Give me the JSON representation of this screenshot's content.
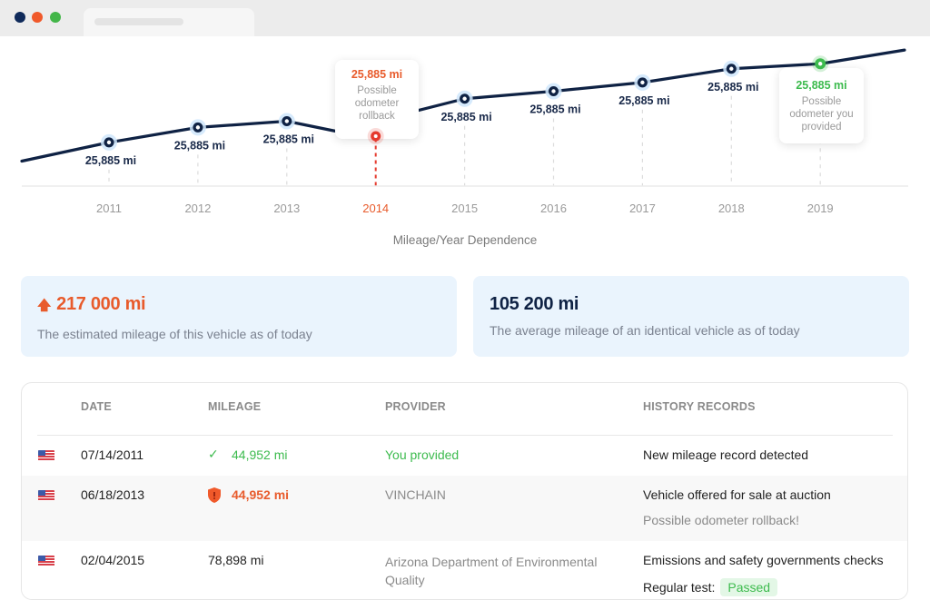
{
  "window": {
    "controls": [
      {
        "name": "close",
        "color": "#0f2a5a"
      },
      {
        "name": "minimize",
        "color": "#f0592a"
      },
      {
        "name": "maximize",
        "color": "#43b649"
      }
    ]
  },
  "colors": {
    "line": "#0f2244",
    "alert": "#e85b2c",
    "rollback_point": "#e53a2e",
    "provided": "#3dbb4e",
    "card_bg": "#eaf4fd"
  },
  "chart_data": {
    "type": "line",
    "title": "",
    "xlabel": "Mileage/Year Dependence",
    "ylabel": "",
    "categories": [
      "2011",
      "2012",
      "2013",
      "2014",
      "2015",
      "2016",
      "2017",
      "2018",
      "2019"
    ],
    "series": [
      {
        "name": "Mileage",
        "values_relative": [
          35,
          47,
          52,
          44,
          70,
          76,
          83,
          94,
          98
        ],
        "labels": [
          "25,885 mi",
          "25,885 mi",
          "25,885 mi",
          "25,885 mi",
          "25,885 mi",
          "25,885 mi",
          "25,885 mi",
          "25,885 mi",
          "25,885 mi"
        ],
        "start_relative": 20,
        "end_relative": 109
      }
    ],
    "ylim": [
      0,
      120
    ],
    "grid": "vertical-dashed",
    "highlighted_category": "2014",
    "annotations": [
      {
        "category": "2014",
        "value": "25,885 mi",
        "text": [
          "Possible",
          "odometer",
          "rollback"
        ],
        "kind": "rollback"
      },
      {
        "category": "2019",
        "value": "25,885 mi",
        "text": [
          "Possible",
          "odometer you",
          "provided"
        ],
        "kind": "provided"
      }
    ]
  },
  "stats": [
    {
      "value": "217 000 mi",
      "description": "The estimated mileage of this vehicle as of today",
      "icon": "arrow-up-icon",
      "alert": true
    },
    {
      "value": "105 200 mi",
      "description": "The average mileage of an identical vehicle as of today",
      "alert": false
    }
  ],
  "table": {
    "headers": [
      "DATE",
      "MILEAGE",
      "PROVIDER",
      "HISTORY RECORDS"
    ],
    "rows": [
      {
        "country": "us-flag",
        "date": "07/14/2011",
        "mileage": "44,952 mi",
        "mileage_status": "verified",
        "provider": "You provided",
        "record": "New mileage record detected",
        "note": ""
      },
      {
        "country": "us-flag",
        "date": "06/18/2013",
        "mileage": "44,952 mi",
        "mileage_status": "alert",
        "provider": "VINCHAIN",
        "record": "Vehicle offered for sale at auction",
        "note": "Possible odometer rollback!"
      },
      {
        "country": "us-flag",
        "date": "02/04/2015",
        "mileage": "78,898 mi",
        "mileage_status": "normal",
        "provider": "Arizona Department of Environmental Quality",
        "record": "Emissions and safety governments checks",
        "note_label": "Regular test:",
        "note_badge": "Passed"
      }
    ]
  }
}
